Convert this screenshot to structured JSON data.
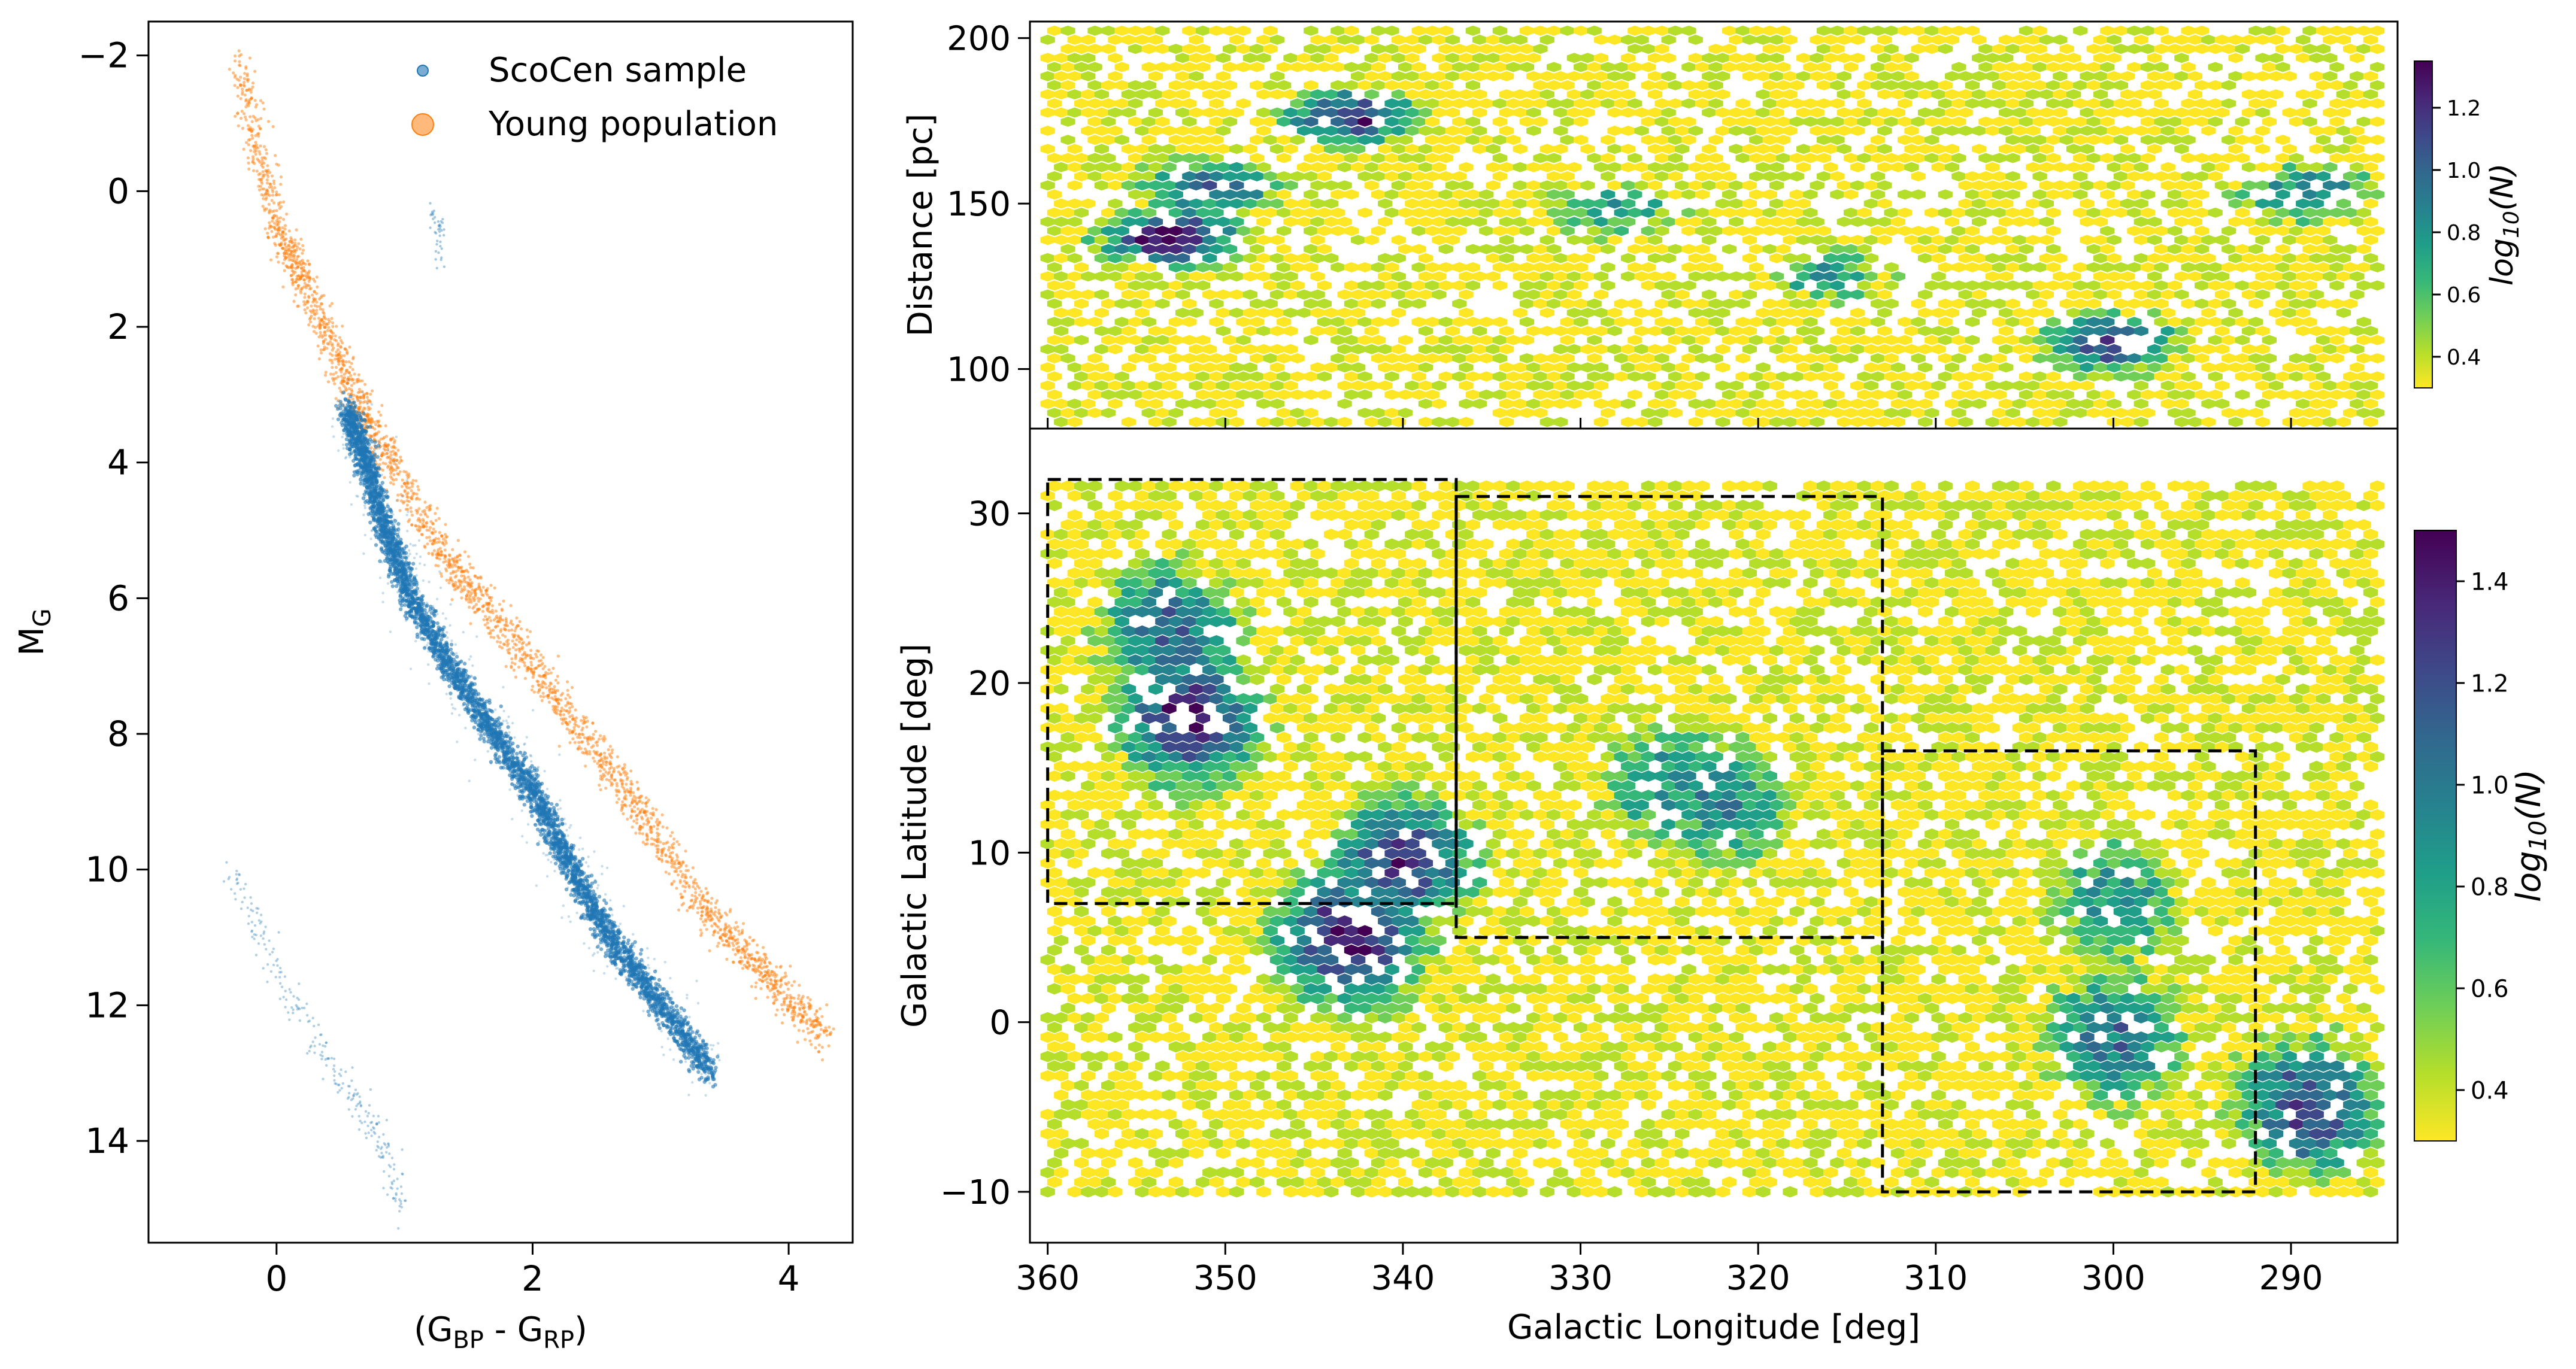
{
  "figure": {
    "colors": {
      "scocen": "#1f77b4",
      "young": "#ff7f0e",
      "viridis": [
        "#fde725",
        "#b5de2b",
        "#6ece58",
        "#35b779",
        "#1f9e89",
        "#26828e",
        "#31688e",
        "#3e4989",
        "#482878",
        "#440154"
      ]
    }
  },
  "chart_data": [
    {
      "type": "scatter",
      "xlabel": "(G_BP - G_RP)",
      "ylabel": "M_G",
      "xlim": [
        -1.0,
        4.5
      ],
      "ylim": [
        15.5,
        -2.5
      ],
      "y_inverted": true,
      "xticks": [
        "0",
        "2",
        "4"
      ],
      "yticks": [
        "−2",
        "0",
        "2",
        "4",
        "6",
        "8",
        "10",
        "12",
        "14"
      ],
      "legend": {
        "placement": "upper-right",
        "entries": [
          {
            "label": "ScoCen sample",
            "color": "#1f77b4"
          },
          {
            "label": "Young population",
            "color": "#ff7f0e"
          }
        ]
      },
      "series": [
        {
          "name": "ScoCen sample",
          "color": "#1f77b4",
          "main_sequence_track": [
            [
              0.55,
              3.2
            ],
            [
              0.7,
              4.0
            ],
            [
              0.85,
              5.0
            ],
            [
              1.05,
              6.0
            ],
            [
              1.35,
              7.0
            ],
            [
              1.7,
              8.0
            ],
            [
              2.05,
              9.0
            ],
            [
              2.3,
              10.0
            ],
            [
              2.6,
              11.0
            ],
            [
              3.0,
              12.0
            ],
            [
              3.4,
              13.0
            ]
          ],
          "giant_clump": [
            [
              1.2,
              0.3
            ],
            [
              1.3,
              0.6
            ],
            [
              1.25,
              1.2
            ]
          ],
          "white_dwarf_sequence": [
            [
              -0.35,
              10.0
            ],
            [
              0.0,
              11.5
            ],
            [
              0.4,
              12.8
            ],
            [
              0.8,
              14.0
            ],
            [
              1.0,
              15.0
            ]
          ]
        },
        {
          "name": "Young population",
          "color": "#ff7f0e",
          "track": [
            [
              -0.3,
              -1.9
            ],
            [
              0.0,
              0.5
            ],
            [
              0.25,
              1.5
            ],
            [
              0.6,
              3.0
            ],
            [
              0.9,
              4.0
            ],
            [
              1.35,
              5.5
            ],
            [
              1.8,
              6.5
            ],
            [
              2.3,
              7.8
            ],
            [
              2.8,
              9.0
            ],
            [
              3.3,
              10.5
            ],
            [
              3.8,
              11.5
            ],
            [
              4.3,
              12.5
            ]
          ]
        }
      ]
    },
    {
      "type": "heatmap",
      "ylabel": "Distance [pc]",
      "xlim": [
        361,
        284
      ],
      "ylim": [
        82,
        205
      ],
      "yticks": [
        "100",
        "150",
        "200"
      ],
      "colorbar": {
        "label": "log_10(N)",
        "range": [
          0.3,
          1.35
        ],
        "ticks": [
          "0.4",
          "0.6",
          "0.8",
          "1.0",
          "1.2"
        ]
      },
      "density_peaks": [
        {
          "l": 353,
          "d": 140,
          "log10N": 1.3
        },
        {
          "l": 351,
          "d": 155,
          "log10N": 1.05
        },
        {
          "l": 343,
          "d": 176,
          "log10N": 1.2
        },
        {
          "l": 300,
          "d": 108,
          "log10N": 1.15
        },
        {
          "l": 289,
          "d": 153,
          "log10N": 0.95
        },
        {
          "l": 328,
          "d": 148,
          "log10N": 0.75
        },
        {
          "l": 316,
          "d": 128,
          "log10N": 0.75
        }
      ]
    },
    {
      "type": "heatmap",
      "xlabel": "Galactic Longitude [deg]",
      "ylabel": "Galactic Latitude [deg]",
      "xlim": [
        361,
        284
      ],
      "ylim": [
        -13,
        35
      ],
      "xticks": [
        "360",
        "350",
        "340",
        "330",
        "320",
        "310",
        "300",
        "290"
      ],
      "yticks": [
        "−10",
        "0",
        "10",
        "20",
        "30"
      ],
      "colorbar": {
        "label": "log_10(N)",
        "range": [
          0.3,
          1.5
        ],
        "ticks": [
          "0.4",
          "0.6",
          "0.8",
          "1.0",
          "1.2",
          "1.4"
        ]
      },
      "density_peaks": [
        {
          "l": 352,
          "b": 18,
          "log10N": 1.4
        },
        {
          "l": 353,
          "b": 23,
          "log10N": 1.15
        },
        {
          "l": 343,
          "b": 5,
          "log10N": 1.45
        },
        {
          "l": 340,
          "b": 9.5,
          "log10N": 1.3
        },
        {
          "l": 325,
          "b": 14,
          "log10N": 0.9
        },
        {
          "l": 322,
          "b": 13,
          "log10N": 0.95
        },
        {
          "l": 300,
          "b": 7,
          "log10N": 0.9
        },
        {
          "l": 300,
          "b": -1,
          "log10N": 1.05
        },
        {
          "l": 289,
          "b": -5,
          "log10N": 1.25
        }
      ],
      "regions": [
        {
          "l": [
            360,
            337
          ],
          "b": [
            7,
            32
          ]
        },
        {
          "l": [
            337,
            313
          ],
          "b": [
            5,
            31
          ]
        },
        {
          "l": [
            313,
            292
          ],
          "b": [
            -10,
            16
          ]
        }
      ]
    }
  ]
}
